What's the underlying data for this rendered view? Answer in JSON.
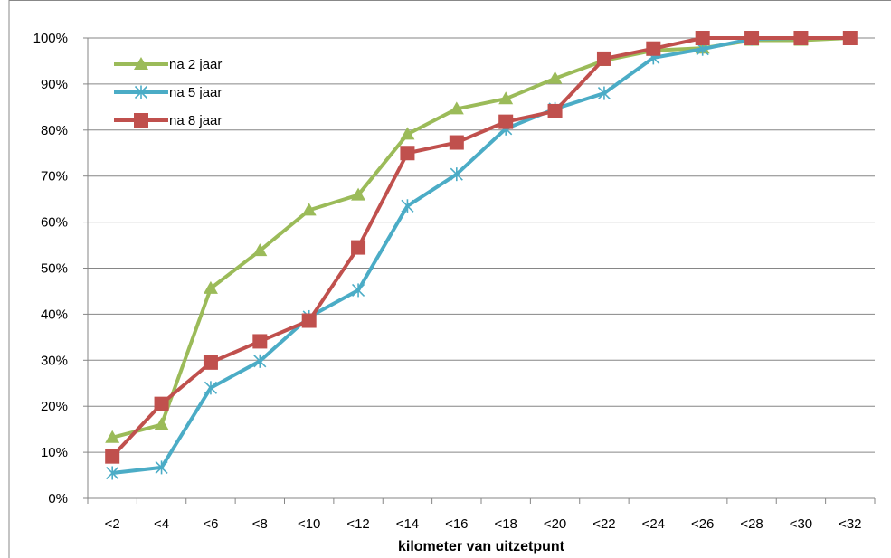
{
  "chart_data": {
    "type": "line",
    "title": "",
    "xlabel": "kilometer van uitzetpunt",
    "ylabel": "",
    "categories": [
      "<2",
      "<4",
      "<6",
      "<8",
      "<10",
      "<12",
      "<14",
      "<16",
      "<18",
      "<20",
      "<22",
      "<24",
      "<26",
      "<28",
      "<30",
      "<32"
    ],
    "yticks": [
      "0%",
      "10%",
      "20%",
      "30%",
      "40%",
      "50%",
      "60%",
      "70%",
      "80%",
      "90%",
      "100%"
    ],
    "ylim": [
      0,
      100
    ],
    "grid": "horizontal",
    "legend_position": "top-left",
    "series": [
      {
        "name": "na 2 jaar",
        "color": "#9bbb59",
        "marker": "triangle",
        "values": [
          13.2,
          16.0,
          45.6,
          53.8,
          62.6,
          65.9,
          79.1,
          84.6,
          86.8,
          91.2,
          95.1,
          97.3,
          97.8,
          99.5,
          99.5,
          100
        ]
      },
      {
        "name": "na 5 jaar",
        "color": "#4bacc6",
        "marker": "asterisk",
        "values": [
          5.5,
          6.7,
          24.0,
          29.8,
          39.4,
          45.2,
          63.5,
          70.4,
          80.3,
          84.6,
          88.0,
          95.7,
          97.6,
          99.8,
          100,
          100
        ]
      },
      {
        "name": "na 8 jaar",
        "color": "#c0504d",
        "marker": "square",
        "values": [
          9.1,
          20.5,
          29.5,
          34.1,
          38.6,
          54.5,
          75.0,
          77.3,
          81.8,
          84.1,
          95.5,
          97.7,
          100,
          100,
          100,
          100
        ]
      }
    ]
  }
}
